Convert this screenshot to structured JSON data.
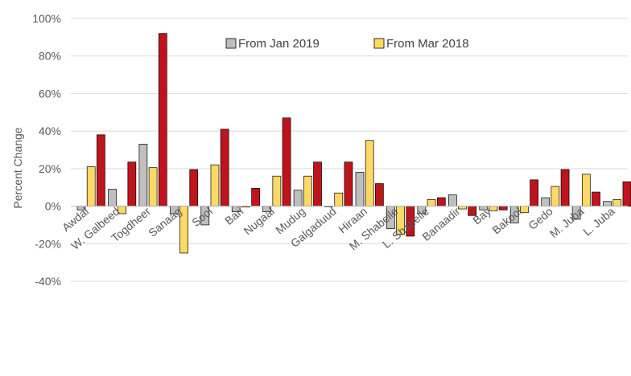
{
  "chart_data": {
    "type": "bar",
    "ylabel": "Percent Change",
    "ylim": [
      -40,
      100
    ],
    "yticks": [
      -40,
      -20,
      0,
      20,
      40,
      60,
      80,
      100
    ],
    "ytick_labels": [
      "-40%",
      "-20%",
      "0%",
      "20%",
      "40%",
      "60%",
      "80%",
      "100%"
    ],
    "grid": true,
    "legend_position": "top",
    "categories": [
      "Awdal",
      "W. Galbeed",
      "Togdheer",
      "Sanaag",
      "Sool",
      "Bari",
      "Nugaal",
      "Mudug",
      "Galgaduud",
      "Hiraan",
      "M. Shabelle",
      "L. Shabelle",
      "Banaadir",
      "Bay",
      "Bakool",
      "Gedo",
      "M. Juba",
      "L. Juba"
    ],
    "series": [
      {
        "name": "From Jan 2019",
        "color": "#bfbfbf",
        "values": [
          -2,
          9,
          33,
          -4,
          -10,
          -3,
          -3,
          8.5,
          0,
          18,
          -12,
          -4,
          6,
          -2,
          -9,
          4.5,
          -7,
          2.5
        ]
      },
      {
        "name": "From Mar 2018",
        "color": "#ffd966",
        "values": [
          21,
          -4,
          20.5,
          -25,
          22,
          -0.5,
          16,
          16,
          7,
          35,
          -15,
          3.5,
          -1.5,
          -2.5,
          -3.5,
          10.5,
          17,
          3.5
        ]
      },
      {
        "name": "",
        "color": "#c0141c",
        "values": [
          38,
          23.5,
          92,
          19.5,
          41,
          9.5,
          47,
          23.5,
          23.5,
          12,
          -16,
          4.5,
          -5,
          -2,
          14,
          19.5,
          7.5,
          13
        ]
      }
    ]
  }
}
